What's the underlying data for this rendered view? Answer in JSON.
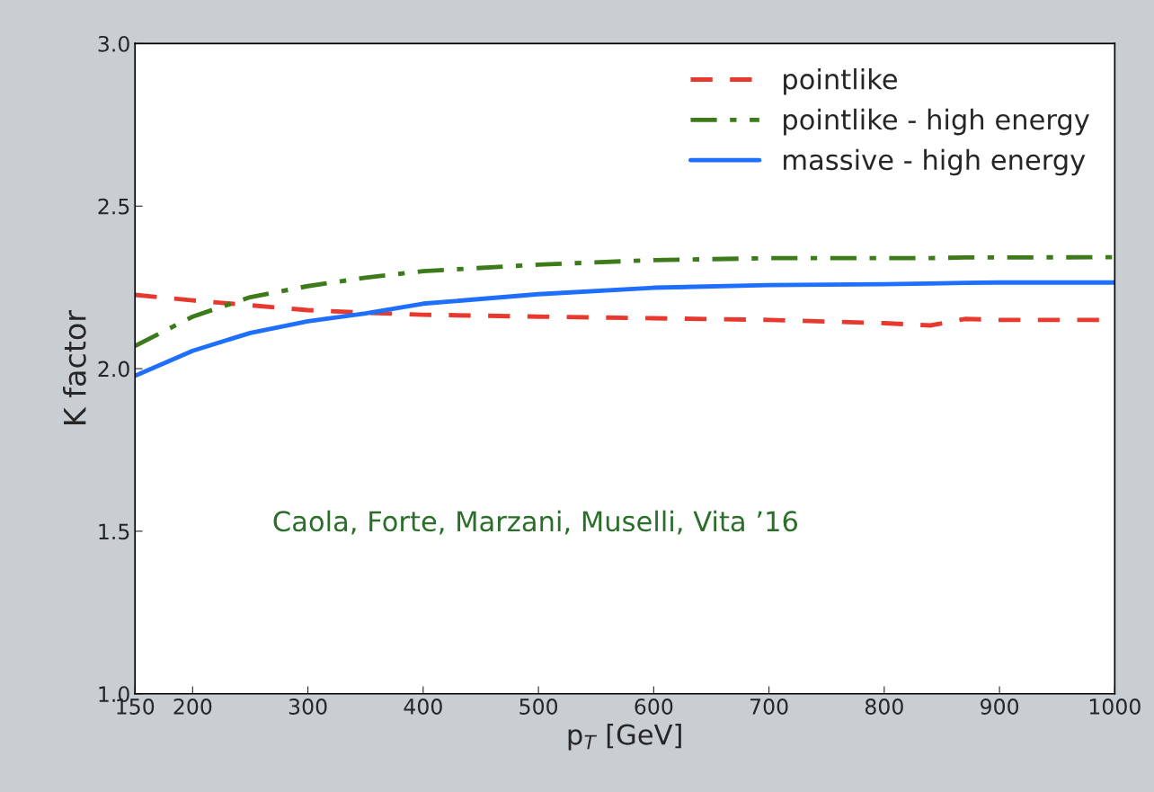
{
  "chart_data": {
    "type": "line",
    "xlabel": "p$_{T}$ [GeV]",
    "ylabel": "K factor",
    "x": [
      150,
      200,
      250,
      300,
      350,
      400,
      500,
      600,
      700,
      800,
      840,
      870,
      900,
      1000
    ],
    "xlim": [
      150,
      1000
    ],
    "xticks": [
      150,
      200,
      300,
      400,
      500,
      600,
      700,
      800,
      900,
      1000
    ],
    "ylim": [
      1.0,
      3.0
    ],
    "yticks": [
      {
        "value": 1.0,
        "label": "1.0"
      },
      {
        "value": 1.5,
        "label": "1.5"
      },
      {
        "value": 2.0,
        "label": "2.0"
      },
      {
        "value": 2.5,
        "label": "2.5"
      },
      {
        "value": 3.0,
        "label": "3.0"
      }
    ],
    "grid": false,
    "legend": "top right",
    "series": [
      {
        "name": "pointlike",
        "color": "#e8392f",
        "line_style": "dashed",
        "values": [
          2.227,
          2.21,
          2.195,
          2.18,
          2.172,
          2.166,
          2.16,
          2.155,
          2.15,
          2.14,
          2.133,
          2.153,
          2.15,
          2.15
        ]
      },
      {
        "name": "pointlike - high energy",
        "color": "#3d7a1a",
        "line_style": "dashdot",
        "values": [
          2.07,
          2.16,
          2.22,
          2.254,
          2.28,
          2.3,
          2.32,
          2.334,
          2.34,
          2.34,
          2.34,
          2.342,
          2.342,
          2.343
        ]
      },
      {
        "name": "massive - high energy",
        "color": "#1f6fff",
        "line_style": "solid",
        "values": [
          1.978,
          2.055,
          2.11,
          2.146,
          2.17,
          2.2,
          2.229,
          2.249,
          2.257,
          2.26,
          2.262,
          2.264,
          2.265,
          2.265
        ]
      }
    ],
    "annotations": [
      "Caola, Forte, Marzani, Muselli, Vita ’16"
    ]
  }
}
